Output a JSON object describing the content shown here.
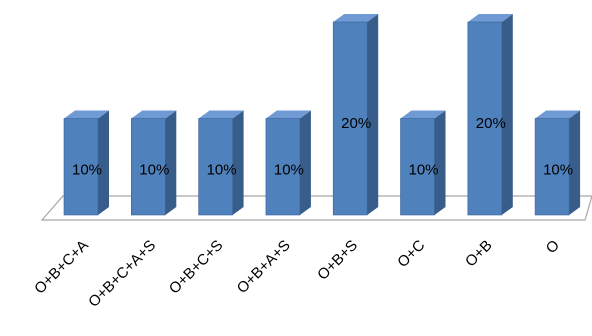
{
  "chart_data": {
    "type": "bar",
    "style": "3d-column",
    "categories": [
      "O+B+C+A",
      "O+B+C+A+S",
      "O+B+C+S",
      "O+B+A+S",
      "O+B+S",
      "O+C",
      "O+B",
      "O"
    ],
    "values": [
      10,
      10,
      10,
      10,
      20,
      10,
      20,
      10
    ],
    "value_format": "percent",
    "ylim": [
      0,
      20
    ],
    "grid": false,
    "legend": "none",
    "title": "",
    "xlabel": "",
    "ylabel": ""
  },
  "colors": {
    "bar_front": "#4F81BD",
    "bar_side": "#385D8A",
    "bar_top": "#6F9AD3",
    "bar_edge": "#3A6496",
    "floor_stroke": "#A6A6A6"
  }
}
